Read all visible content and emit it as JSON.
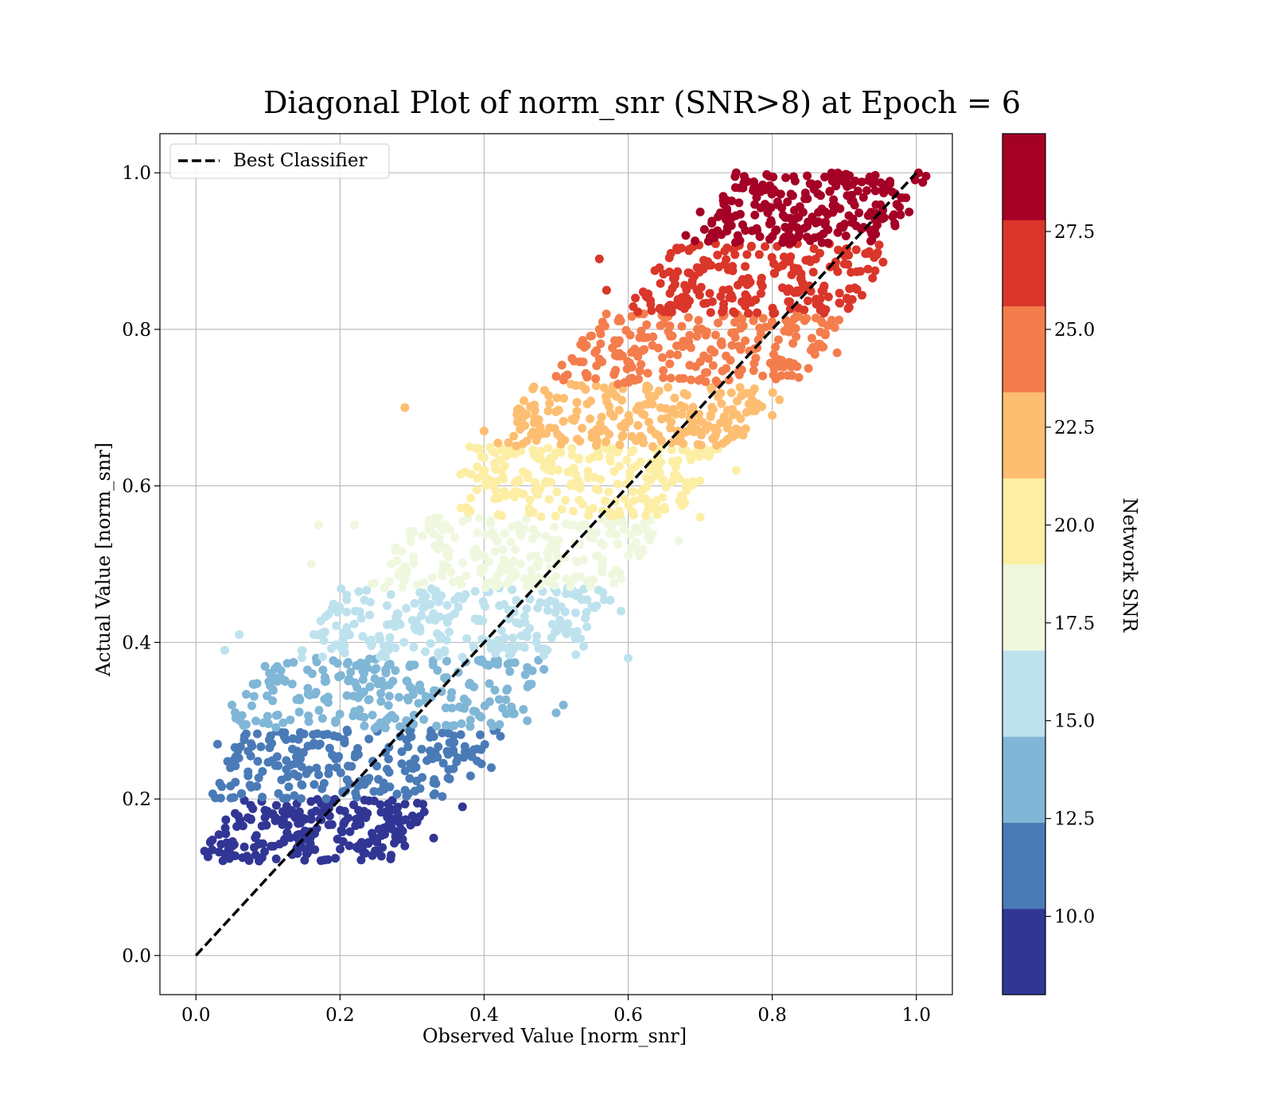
{
  "chart_data": {
    "type": "scatter",
    "title": "Diagonal Plot of norm_snr (SNR>8) at Epoch = 6",
    "xlabel": "Observed Value [norm_snr]",
    "ylabel": "Actual Value [norm_snr]",
    "xlim": [
      -0.05,
      1.05
    ],
    "ylim": [
      -0.05,
      1.05
    ],
    "xticks": [
      "0.0",
      "0.2",
      "0.4",
      "0.6",
      "0.8",
      "1.0"
    ],
    "yticks": [
      "0.0",
      "0.2",
      "0.4",
      "0.6",
      "0.8",
      "1.0"
    ],
    "grid": true,
    "legend": {
      "placement": "top-left",
      "entries": [
        "Best Classifier"
      ]
    },
    "reference_line": {
      "name": "Best Classifier",
      "x": [
        0.0,
        1.0
      ],
      "y": [
        0.0,
        1.0
      ],
      "style": "dashed",
      "color": "#000000"
    },
    "colorbar": {
      "label": "Network SNR",
      "range": [
        8,
        30
      ],
      "ticks": [
        "10.0",
        "12.5",
        "15.0",
        "17.5",
        "20.0",
        "22.5",
        "25.0",
        "27.5"
      ],
      "tick_values": [
        10.0,
        12.5,
        15.0,
        17.5,
        20.0,
        22.5,
        25.0,
        27.5
      ],
      "bin_edges": [
        8.0,
        10.2,
        12.4,
        14.6,
        16.8,
        19.0,
        21.2,
        23.4,
        25.6,
        27.8,
        30.0
      ],
      "colors": [
        "#313695",
        "#4a7bb7",
        "#80b6d6",
        "#bde2ee",
        "#eff8df",
        "#fdeea5",
        "#fdbe71",
        "#f47d4d",
        "#da362a",
        "#a50026"
      ]
    },
    "point_bands": [
      {
        "snr_bin": 0,
        "y_range": [
          0.12,
          0.2
        ],
        "x_range": [
          0.03,
          0.3
        ],
        "outliers": [
          [
            0.33,
            0.15
          ],
          [
            0.37,
            0.19
          ],
          [
            0.29,
            0.14
          ]
        ]
      },
      {
        "snr_bin": 1,
        "y_range": [
          0.2,
          0.29
        ],
        "x_range": [
          0.04,
          0.4
        ],
        "outliers": [
          [
            0.41,
            0.24
          ],
          [
            0.03,
            0.27
          ]
        ]
      },
      {
        "snr_bin": 2,
        "y_range": [
          0.29,
          0.38
        ],
        "x_range": [
          0.07,
          0.47
        ],
        "outliers": [
          [
            0.5,
            0.31
          ],
          [
            0.51,
            0.32
          ],
          [
            0.46,
            0.3
          ],
          [
            0.05,
            0.32
          ]
        ]
      },
      {
        "snr_bin": 3,
        "y_range": [
          0.38,
          0.47
        ],
        "x_range": [
          0.17,
          0.56
        ],
        "outliers": [
          [
            0.06,
            0.41
          ],
          [
            0.6,
            0.38
          ],
          [
            0.59,
            0.44
          ],
          [
            0.04,
            0.39
          ]
        ]
      },
      {
        "snr_bin": 4,
        "y_range": [
          0.47,
          0.56
        ],
        "x_range": [
          0.27,
          0.62
        ],
        "outliers": [
          [
            0.17,
            0.55
          ],
          [
            0.16,
            0.5
          ],
          [
            0.22,
            0.55
          ],
          [
            0.67,
            0.53
          ]
        ]
      },
      {
        "snr_bin": 5,
        "y_range": [
          0.56,
          0.65
        ],
        "x_range": [
          0.36,
          0.7
        ],
        "outliers": [
          [
            0.38,
            0.65
          ],
          [
            0.75,
            0.62
          ],
          [
            0.7,
            0.56
          ]
        ]
      },
      {
        "snr_bin": 6,
        "y_range": [
          0.65,
          0.73
        ],
        "x_range": [
          0.44,
          0.78
        ],
        "outliers": [
          [
            0.29,
            0.7
          ],
          [
            0.4,
            0.67
          ],
          [
            0.8,
            0.69
          ],
          [
            0.81,
            0.71
          ]
        ]
      },
      {
        "snr_bin": 7,
        "y_range": [
          0.73,
          0.82
        ],
        "x_range": [
          0.52,
          0.87
        ],
        "outliers": [
          [
            0.56,
            0.8
          ],
          [
            0.89,
            0.77
          ],
          [
            0.5,
            0.74
          ]
        ]
      },
      {
        "snr_bin": 8,
        "y_range": [
          0.82,
          0.91
        ],
        "x_range": [
          0.63,
          0.94
        ],
        "outliers": [
          [
            0.56,
            0.89
          ],
          [
            0.57,
            0.85
          ],
          [
            0.61,
            0.84
          ]
        ]
      },
      {
        "snr_bin": 9,
        "y_range": [
          0.91,
          1.0
        ],
        "x_range": [
          0.72,
          0.99
        ],
        "outliers": [
          [
            0.68,
            0.92
          ],
          [
            0.7,
            0.95
          ],
          [
            0.75,
            1.0
          ],
          [
            0.99,
            0.95
          ]
        ]
      }
    ]
  }
}
